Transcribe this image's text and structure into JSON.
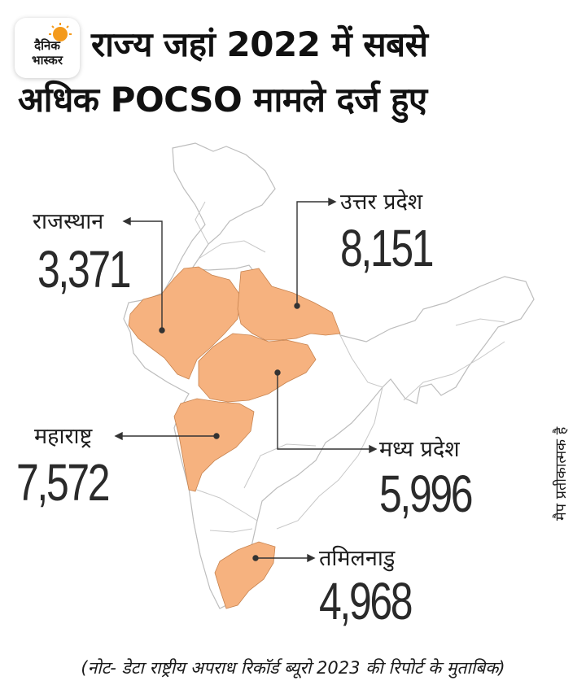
{
  "logo": {
    "line1": "दैनिक",
    "line2": "भास्कर"
  },
  "title": {
    "line1": "राज्य जहां 2022 में सबसे",
    "line2": "अधिक POCSO मामले दर्ज हुए"
  },
  "colors": {
    "highlight": "#f6b27f",
    "outline": "#bdbdbd",
    "logo_sun": "#f49a1c",
    "text": "#111111"
  },
  "states": [
    {
      "key": "rajasthan",
      "name": "राजस्थान",
      "value": "3,371"
    },
    {
      "key": "uttar_pradesh",
      "name": "उत्तर प्रदेश",
      "value": "8,151"
    },
    {
      "key": "maharashtra",
      "name": "महाराष्ट्र",
      "value": "7,572"
    },
    {
      "key": "madhya_pradesh",
      "name": "मध्य प्रदेश",
      "value": "5,996"
    },
    {
      "key": "tamil_nadu",
      "name": "तमिलनाडु",
      "value": "4,968"
    }
  ],
  "side_note": "मैप प्रतीकात्मक है",
  "note": "(नोट- डेटा राष्ट्रीय अपराध रिकॉर्ड ब्यूरो 2023 की रिपोर्ट के मुताबिक)"
}
